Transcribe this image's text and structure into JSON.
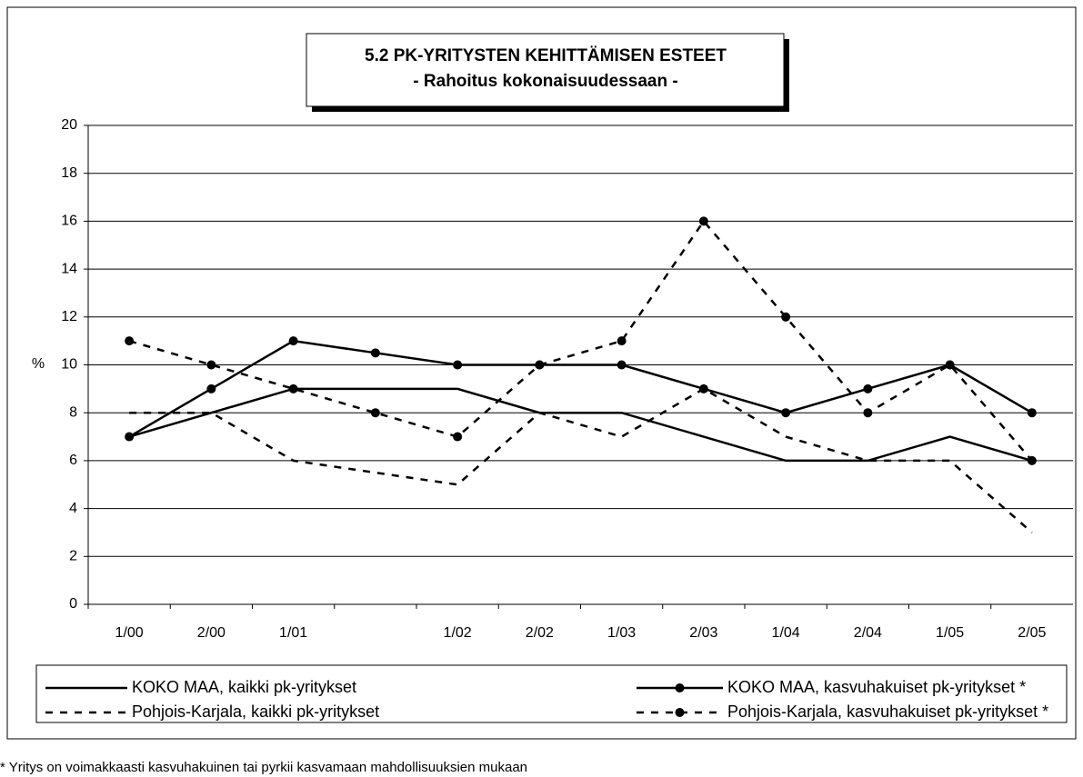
{
  "chart_data": {
    "type": "line",
    "title": "5.2 PK-YRITYSTEN KEHITTÄMISEN ESTEET",
    "subtitle": "- Rahoitus kokonaisuudessaan -",
    "y_label": "%",
    "annotation": "* Yritys on voimakkaasti kasvuhakuinen tai pyrkii kasvamaan mahdollisuuksien mukaan",
    "categories": [
      "1/00",
      "2/00",
      "1/01",
      null,
      "1/02",
      "2/02",
      "1/03",
      "2/03",
      "1/04",
      "2/04",
      "1/05",
      "2/05"
    ],
    "series": [
      {
        "name": "KOKO MAA, kaikki pk-yritykset",
        "color": "#000000",
        "dashed": false,
        "markers": false,
        "values": [
          7,
          8,
          9,
          9,
          9,
          8,
          8,
          7,
          6,
          6,
          7,
          6
        ]
      },
      {
        "name": "KOKO MAA, kasvuhakuiset pk-yritykset *",
        "color": "#000000",
        "dashed": false,
        "markers": true,
        "values": [
          7,
          9,
          11,
          10.5,
          10,
          10,
          10,
          9,
          8,
          9,
          10,
          8
        ]
      },
      {
        "name": "Pohjois-Karjala, kaikki pk-yritykset",
        "color": "#000000",
        "dashed": true,
        "markers": false,
        "values": [
          8,
          8,
          6,
          5.5,
          5,
          8,
          7,
          9,
          7,
          6,
          6,
          3
        ]
      },
      {
        "name": "Pohjois-Karjala, kasvuhakuiset pk-yritykset *",
        "color": "#000000",
        "dashed": true,
        "markers": true,
        "values": [
          11,
          10,
          9,
          8,
          7,
          10,
          11,
          16,
          12,
          8,
          10,
          6
        ]
      }
    ],
    "ylim": [
      0,
      20
    ],
    "yticks": [
      0,
      2,
      4,
      6,
      8,
      10,
      12,
      14,
      16,
      18,
      20
    ],
    "grid": true
  }
}
